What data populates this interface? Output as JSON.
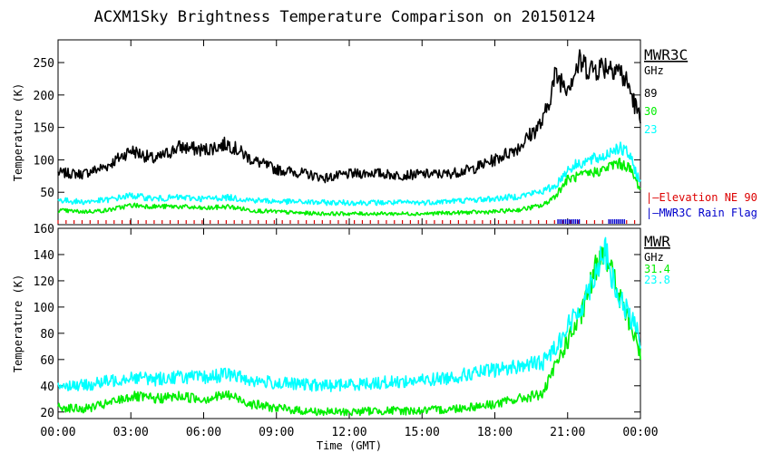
{
  "title": "ACXM1Sky Brightness Temperature Comparison on 20150124",
  "xlabel": "Time (GMT)",
  "colors": {
    "black": "#000000",
    "green": "#00ee00",
    "cyan": "#00ffff",
    "red": "#dd0000",
    "blue": "#0000cc"
  },
  "chart_data": [
    {
      "type": "line",
      "panel": "top",
      "legend_title": "MWR3C",
      "legend_unit": "GHz",
      "ylabel": "Temperature (K)",
      "ylim": [
        0,
        285
      ],
      "yticks": [
        50,
        100,
        150,
        200,
        250
      ],
      "xlim": [
        0,
        24
      ],
      "xticks": [
        "00:00",
        "03:00",
        "06:00",
        "09:00",
        "12:00",
        "15:00",
        "18:00",
        "21:00",
        "00:00"
      ],
      "x": [
        0,
        1,
        2,
        3,
        4,
        5,
        6,
        7,
        8,
        9,
        10,
        11,
        12,
        13,
        14,
        15,
        16,
        17,
        18,
        19,
        20,
        20.5,
        21,
        21.5,
        22,
        22.5,
        23,
        23.5,
        24
      ],
      "series": [
        {
          "name": "89",
          "color": "#000000",
          "values": [
            80,
            78,
            90,
            115,
            100,
            120,
            115,
            125,
            100,
            85,
            80,
            72,
            78,
            80,
            76,
            78,
            78,
            85,
            100,
            120,
            160,
            230,
            215,
            250,
            240,
            245,
            245,
            215,
            160
          ]
        },
        {
          "name": "30",
          "color": "#00ee00",
          "values": [
            22,
            20,
            22,
            30,
            28,
            28,
            25,
            28,
            22,
            20,
            18,
            17,
            17,
            17,
            17,
            17,
            18,
            19,
            20,
            23,
            30,
            45,
            70,
            75,
            80,
            85,
            95,
            90,
            55
          ]
        },
        {
          "name": "23",
          "color": "#00ffff",
          "values": [
            38,
            35,
            38,
            45,
            40,
            42,
            40,
            42,
            38,
            36,
            35,
            34,
            34,
            34,
            34,
            34,
            36,
            38,
            40,
            44,
            52,
            60,
            85,
            95,
            100,
            105,
            120,
            110,
            65
          ]
        }
      ],
      "flags": [
        {
          "name": "Elevation NE 90",
          "color": "#dd0000"
        },
        {
          "name": "MWR3C Rain Flag",
          "color": "#0000cc",
          "ranges": [
            [
              20.6,
              21.5
            ],
            [
              22.7,
              23.4
            ]
          ]
        }
      ]
    },
    {
      "type": "line",
      "panel": "bottom",
      "legend_title": "MWR",
      "legend_unit": "GHz",
      "ylabel": "Temperature (K)",
      "ylim": [
        15,
        160
      ],
      "yticks": [
        20,
        40,
        60,
        80,
        100,
        120,
        140,
        160
      ],
      "xlim": [
        0,
        24
      ],
      "xticks": [
        "00:00",
        "03:00",
        "06:00",
        "09:00",
        "12:00",
        "15:00",
        "18:00",
        "21:00",
        "00:00"
      ],
      "x": [
        0,
        1,
        2,
        3,
        4,
        5,
        6,
        7,
        8,
        9,
        10,
        11,
        12,
        13,
        14,
        15,
        16,
        17,
        18,
        19,
        20,
        20.5,
        21,
        21.5,
        22,
        22.5,
        23,
        23.5,
        24
      ],
      "series": [
        {
          "name": "31.4",
          "color": "#00ee00",
          "values": [
            24,
            22,
            26,
            32,
            30,
            32,
            30,
            33,
            26,
            23,
            21,
            20,
            20,
            21,
            21,
            21,
            22,
            24,
            26,
            30,
            34,
            55,
            75,
            90,
            120,
            148,
            115,
            90,
            65
          ]
        },
        {
          "name": "23.8",
          "color": "#00ffff",
          "values": [
            41,
            40,
            43,
            47,
            45,
            47,
            46,
            49,
            44,
            42,
            41,
            40,
            41,
            42,
            43,
            44,
            46,
            49,
            52,
            55,
            58,
            70,
            85,
            98,
            120,
            145,
            110,
            95,
            75
          ]
        }
      ]
    }
  ]
}
